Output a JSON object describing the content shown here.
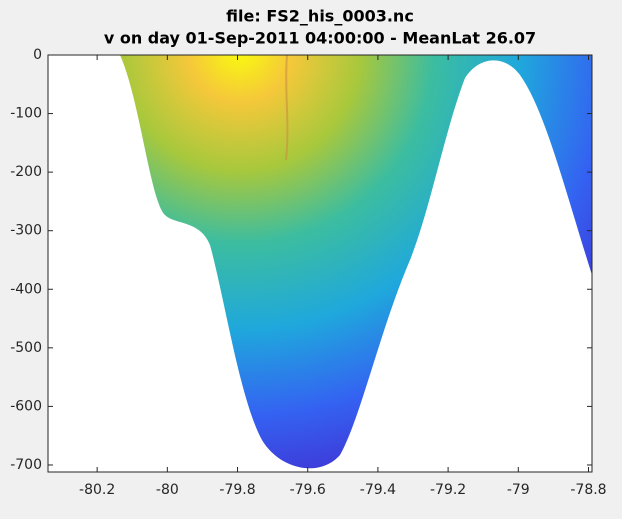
{
  "chart_data": {
    "type": "section",
    "title": "file: FS2_his_0003.nc",
    "subtitle": "v on day 01-Sep-2011 04:00:00 - MeanLat 26.07",
    "xlim": [
      -80.34,
      -78.79
    ],
    "xticks": [
      -80.2,
      -80,
      -79.8,
      -79.6,
      -79.4,
      -79.2,
      -79,
      -78.8
    ],
    "ylim": [
      -712,
      0
    ],
    "yticks": [
      -700,
      -600,
      -500,
      -400,
      -300,
      -200,
      -100,
      0
    ],
    "grid": false
  }
}
